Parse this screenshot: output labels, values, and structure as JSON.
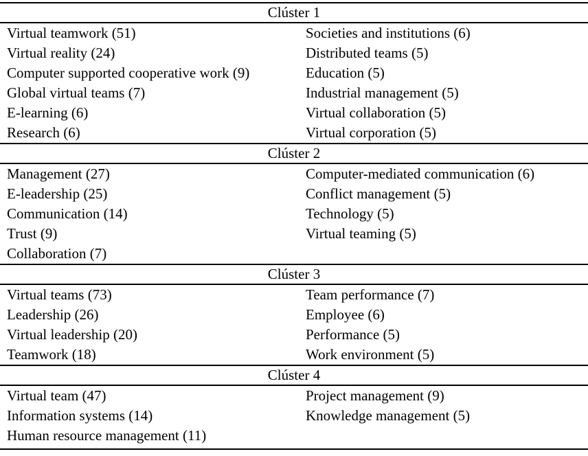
{
  "table": {
    "clusters": [
      {
        "title": "Clúster 1",
        "left": [
          "Virtual teamwork (51)",
          "Virtual reality (24)",
          "Computer supported cooperative work (9)",
          "Global virtual teams (7)",
          "E-learning (6)",
          "Research (6)"
        ],
        "right": [
          "Societies and institutions (6)",
          "Distributed teams (5)",
          "Education (5)",
          "Industrial management (5)",
          "Virtual collaboration (5)",
          "Virtual corporation (5)"
        ]
      },
      {
        "title": "Clúster 2",
        "left": [
          "Management (27)",
          "E-leadership (25)",
          "Communication (14)",
          "Trust (9)",
          "Collaboration (7)"
        ],
        "right": [
          "Computer-mediated communication (6)",
          "Conflict management (5)",
          "Technology (5)",
          "Virtual teaming (5)"
        ]
      },
      {
        "title": "Clúster 3",
        "left": [
          "Virtual teams (73)",
          "Leadership (26)",
          "Virtual leadership (20)",
          "Teamwork (18)"
        ],
        "right": [
          "Team performance (7)",
          "Employee (6)",
          "Performance (5)",
          "Work environment (5)"
        ]
      },
      {
        "title": "Clúster 4",
        "left": [
          "Virtual team (47)",
          "Information systems (14)",
          "Human resource management (11)"
        ],
        "right": [
          "Project management (9)",
          "Knowledge management (5)"
        ]
      }
    ],
    "colors": {
      "text": "#000000",
      "rule": "#000000",
      "background": "#ffffff"
    }
  }
}
